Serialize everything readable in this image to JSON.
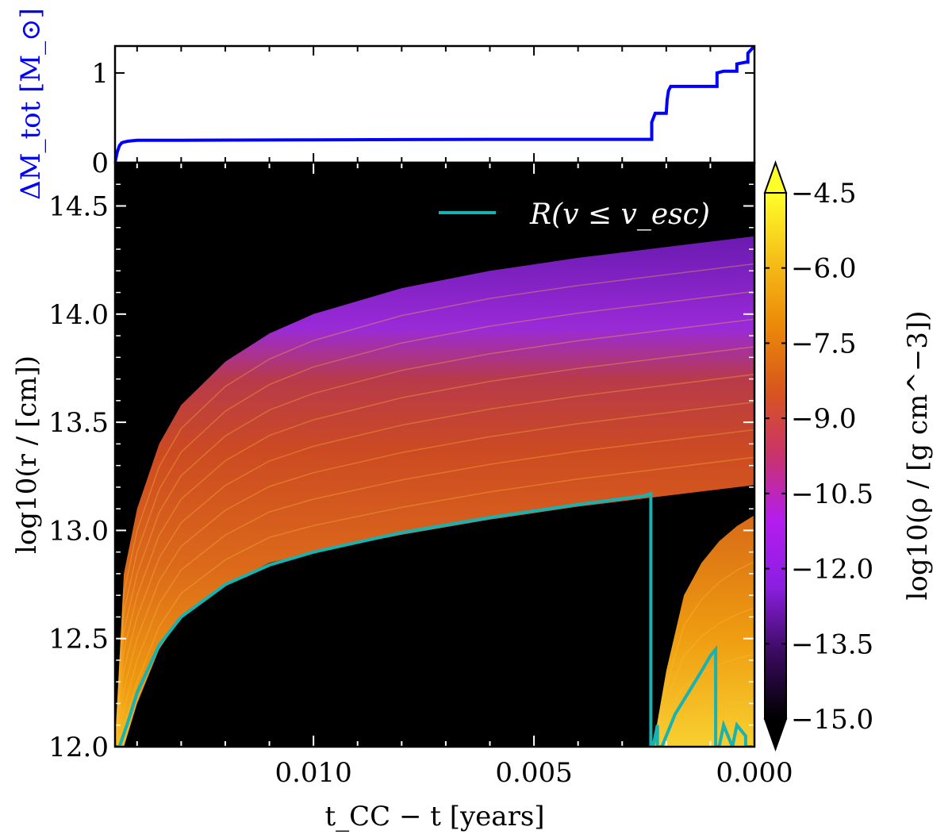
{
  "chart_data": [
    {
      "type": "line",
      "panel": "top",
      "ylabel": "ΔM_tot [M_⊙]",
      "ylabel_color": "#0000ff",
      "xlim": [
        0.0145,
        0.0
      ],
      "ylim": [
        0,
        1.3
      ],
      "yticks": [
        0,
        1
      ],
      "ytick_labels": [
        "0",
        "1"
      ],
      "series": [
        {
          "name": "ΔM_tot",
          "color": "#0000ff",
          "x": [
            0.0145,
            0.01445,
            0.0144,
            0.01435,
            0.0143,
            0.0142,
            0.014,
            0.013,
            0.01,
            0.006,
            0.00233,
            0.00233,
            0.00225,
            0.002,
            0.00198,
            0.00195,
            0.0019,
            0.0015,
            0.00085,
            0.00085,
            0.0007,
            0.0005,
            0.0004,
            0.0004,
            0.0002,
            0.00015,
            0.00015,
            0.0
          ],
          "y": [
            0.0,
            0.12,
            0.19,
            0.22,
            0.23,
            0.24,
            0.25,
            0.25,
            0.255,
            0.26,
            0.26,
            0.45,
            0.55,
            0.55,
            0.7,
            0.8,
            0.85,
            0.85,
            0.85,
            1.0,
            1.02,
            1.02,
            1.02,
            1.1,
            1.12,
            1.12,
            1.22,
            1.3
          ]
        }
      ]
    },
    {
      "type": "heatmap",
      "panel": "main",
      "xlabel": "t_CC − t [years]",
      "ylabel": "log10(r / [cm])",
      "xlim": [
        0.0145,
        0.0
      ],
      "ylim": [
        12.0,
        14.7
      ],
      "xticks": [
        0.01,
        0.005,
        0.0
      ],
      "xtick_labels": [
        "0.010",
        "0.005",
        "0.000"
      ],
      "yticks": [
        12.0,
        12.5,
        13.0,
        13.5,
        14.0,
        14.5
      ],
      "ytick_labels": [
        "12.0",
        "12.5",
        "13.0",
        "13.5",
        "14.0",
        "14.5"
      ],
      "background": "#000000",
      "regions": [
        {
          "name": "main-shell",
          "x": [
            0.0145,
            0.0143,
            0.014,
            0.0135,
            0.013,
            0.012,
            0.011,
            0.01,
            0.008,
            0.006,
            0.004,
            0.002,
            0.0
          ],
          "outer": [
            12.0,
            12.8,
            13.1,
            13.4,
            13.58,
            13.78,
            13.91,
            14.0,
            14.12,
            14.2,
            14.26,
            14.31,
            14.36
          ],
          "inner": [
            12.0,
            12.0,
            12.2,
            12.45,
            12.6,
            12.75,
            12.85,
            12.9,
            12.98,
            13.05,
            13.11,
            13.16,
            13.21
          ]
        },
        {
          "name": "late-shell",
          "x": [
            0.0023,
            0.002,
            0.0016,
            0.0012,
            0.0008,
            0.0004,
            0.0
          ],
          "outer": [
            12.0,
            12.35,
            12.7,
            12.85,
            12.95,
            13.02,
            13.07
          ],
          "inner": [
            12.0,
            12.0,
            12.0,
            12.0,
            12.0,
            12.0,
            12.0
          ]
        }
      ],
      "series": [
        {
          "name": "R(v ≤ v_esc)",
          "color": "#17b3b3",
          "x": [
            0.0145,
            0.0144,
            0.0142,
            0.014,
            0.0135,
            0.013,
            0.012,
            0.011,
            0.01,
            0.008,
            0.006,
            0.004,
            0.0025,
            0.00235,
            0.00235,
            0.0023,
            0.0022,
            0.0022,
            0.0021,
            0.0018,
            0.0015,
            0.0012,
            0.001,
            0.00088,
            0.00088,
            0.0008,
            0.0007,
            0.0005,
            0.0005,
            0.0004,
            0.0002,
            0.0002,
            5e-05
          ],
          "y": [
            12.0,
            12.0,
            12.12,
            12.25,
            12.47,
            12.6,
            12.75,
            12.84,
            12.9,
            12.99,
            13.06,
            13.12,
            13.16,
            13.17,
            12.0,
            12.0,
            12.1,
            12.0,
            12.0,
            12.15,
            12.25,
            12.35,
            12.42,
            12.45,
            12.0,
            12.0,
            12.1,
            12.0,
            12.0,
            12.1,
            12.05,
            12.0,
            12.0
          ]
        }
      ],
      "legend": {
        "label": "R(v ≤ v_esc)",
        "position": "top-right"
      }
    },
    {
      "type": "colorbar",
      "panel": "colorbar",
      "label": "log10(ρ / [g cm^−3])",
      "range": [
        -15.0,
        -4.5
      ],
      "extend": "both",
      "ticks": [
        -4.5,
        -6.0,
        -7.5,
        -9.0,
        -10.5,
        -12.0,
        -13.5,
        -15.0
      ],
      "tick_labels": [
        "−4.5",
        "−6.0",
        "−7.5",
        "−9.0",
        "−10.5",
        "−12.0",
        "−13.5",
        "−15.0"
      ],
      "colors": [
        "#000000",
        "#3a0a5e",
        "#8a1fe0",
        "#b41cf0",
        "#c8336c",
        "#d8561c",
        "#ec8a08",
        "#f6c018",
        "#ffff2a"
      ]
    }
  ]
}
